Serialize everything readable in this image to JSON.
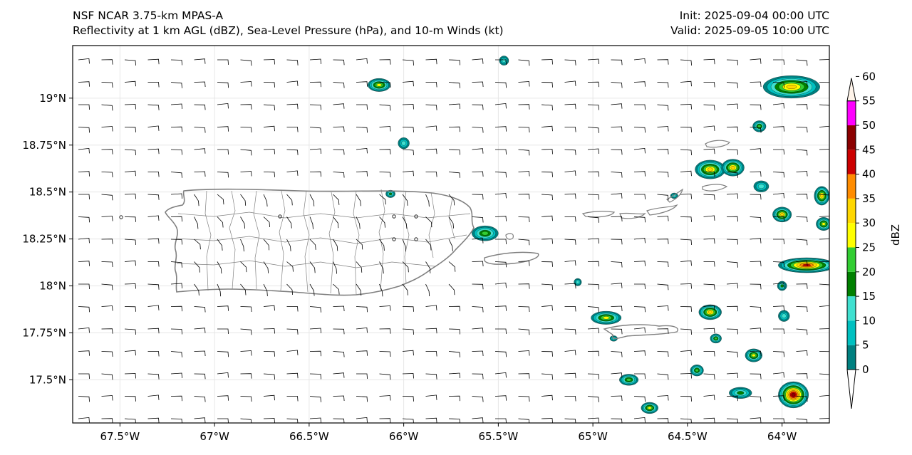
{
  "header": {
    "line1_left": "NSF NCAR 3.75-km MPAS-A",
    "line2_left": "Reflectivity at 1 km AGL (dBZ), Sea-Level Pressure (hPa), and 10-m Winds (kt)",
    "line1_right": "Init: 2025-09-04 00:00 UTC",
    "line2_right": "Valid: 2025-09-05 10:00 UTC"
  },
  "map": {
    "lon_range": [
      -67.75,
      -63.75
    ],
    "lat_range": [
      17.27,
      19.28
    ],
    "lon_ticks": [
      {
        "value": -67.5,
        "label": "67.5°W"
      },
      {
        "value": -67.0,
        "label": "67°W"
      },
      {
        "value": -66.5,
        "label": "66.5°W"
      },
      {
        "value": -66.0,
        "label": "66°W"
      },
      {
        "value": -65.5,
        "label": "65.5°W"
      },
      {
        "value": -65.0,
        "label": "65°W"
      },
      {
        "value": -64.5,
        "label": "64.5°W"
      },
      {
        "value": -64.0,
        "label": "64°W"
      }
    ],
    "lat_ticks": [
      {
        "value": 19.0,
        "label": "19°N"
      },
      {
        "value": 18.75,
        "label": "18.75°N"
      },
      {
        "value": 18.5,
        "label": "18.5°N"
      },
      {
        "value": 18.25,
        "label": "18.25°N"
      },
      {
        "value": 18.0,
        "label": "18°N"
      },
      {
        "value": 17.75,
        "label": "17.75°N"
      },
      {
        "value": 17.5,
        "label": "17.5°N"
      }
    ],
    "gridlines": true,
    "coastline_color": "#808080",
    "wind_barb_color": "#000000"
  },
  "colorbar": {
    "label": "dBZ",
    "ticks": [
      "0",
      "5",
      "10",
      "15",
      "20",
      "25",
      "30",
      "35",
      "40",
      "45",
      "50",
      "55",
      "60"
    ],
    "colors": [
      "#008080",
      "#00c0c0",
      "#40e0d0",
      "#008000",
      "#32cd32",
      "#ffff00",
      "#ffd700",
      "#ff8c00",
      "#cc0000",
      "#8b0000",
      "#ff00ff",
      "#ffffff"
    ]
  },
  "echoes": [
    {
      "lon": -66.13,
      "lat": 19.07,
      "rx": 0.06,
      "ry": 0.035,
      "max": 25
    },
    {
      "lon": -65.47,
      "lat": 19.2,
      "rx": 0.025,
      "ry": 0.025,
      "max": 10
    },
    {
      "lon": -66.0,
      "lat": 18.76,
      "rx": 0.03,
      "ry": 0.03,
      "max": 10
    },
    {
      "lon": -65.57,
      "lat": 18.28,
      "rx": 0.07,
      "ry": 0.04,
      "max": 20
    },
    {
      "lon": -64.93,
      "lat": 17.83,
      "rx": 0.08,
      "ry": 0.035,
      "max": 25
    },
    {
      "lon": -64.38,
      "lat": 18.62,
      "rx": 0.08,
      "ry": 0.05,
      "max": 30
    },
    {
      "lon": -64.26,
      "lat": 18.63,
      "rx": 0.06,
      "ry": 0.045,
      "max": 30
    },
    {
      "lon": -64.12,
      "lat": 18.85,
      "rx": 0.035,
      "ry": 0.03,
      "max": 20
    },
    {
      "lon": -63.95,
      "lat": 19.06,
      "rx": 0.15,
      "ry": 0.06,
      "max": 30
    },
    {
      "lon": -63.87,
      "lat": 18.11,
      "rx": 0.15,
      "ry": 0.04,
      "max": 40
    },
    {
      "lon": -64.0,
      "lat": 18.38,
      "rx": 0.05,
      "ry": 0.04,
      "max": 30
    },
    {
      "lon": -63.79,
      "lat": 18.48,
      "rx": 0.04,
      "ry": 0.05,
      "max": 30
    },
    {
      "lon": -63.78,
      "lat": 18.33,
      "rx": 0.04,
      "ry": 0.035,
      "max": 25
    },
    {
      "lon": -64.38,
      "lat": 17.86,
      "rx": 0.06,
      "ry": 0.04,
      "max": 30
    },
    {
      "lon": -64.35,
      "lat": 17.72,
      "rx": 0.03,
      "ry": 0.025,
      "max": 20
    },
    {
      "lon": -64.15,
      "lat": 17.63,
      "rx": 0.045,
      "ry": 0.035,
      "max": 25
    },
    {
      "lon": -63.99,
      "lat": 17.84,
      "rx": 0.03,
      "ry": 0.03,
      "max": 10
    },
    {
      "lon": -64.0,
      "lat": 18.0,
      "rx": 0.025,
      "ry": 0.025,
      "max": 15
    },
    {
      "lon": -64.45,
      "lat": 17.55,
      "rx": 0.035,
      "ry": 0.03,
      "max": 20
    },
    {
      "lon": -64.22,
      "lat": 17.43,
      "rx": 0.06,
      "ry": 0.03,
      "max": 15
    },
    {
      "lon": -63.94,
      "lat": 17.42,
      "rx": 0.08,
      "ry": 0.07,
      "max": 45
    },
    {
      "lon": -64.81,
      "lat": 17.5,
      "rx": 0.05,
      "ry": 0.03,
      "max": 20
    },
    {
      "lon": -64.7,
      "lat": 17.35,
      "rx": 0.045,
      "ry": 0.03,
      "max": 25
    },
    {
      "lon": -65.08,
      "lat": 18.02,
      "rx": 0.02,
      "ry": 0.02,
      "max": 10
    },
    {
      "lon": -66.07,
      "lat": 18.49,
      "rx": 0.025,
      "ry": 0.02,
      "max": 15
    },
    {
      "lon": -64.57,
      "lat": 18.48,
      "rx": 0.02,
      "ry": 0.015,
      "max": 10
    },
    {
      "lon": -64.89,
      "lat": 17.72,
      "rx": 0.02,
      "ry": 0.015,
      "max": 10
    },
    {
      "lon": -64.11,
      "lat": 18.53,
      "rx": 0.04,
      "ry": 0.03,
      "max": 10
    }
  ]
}
